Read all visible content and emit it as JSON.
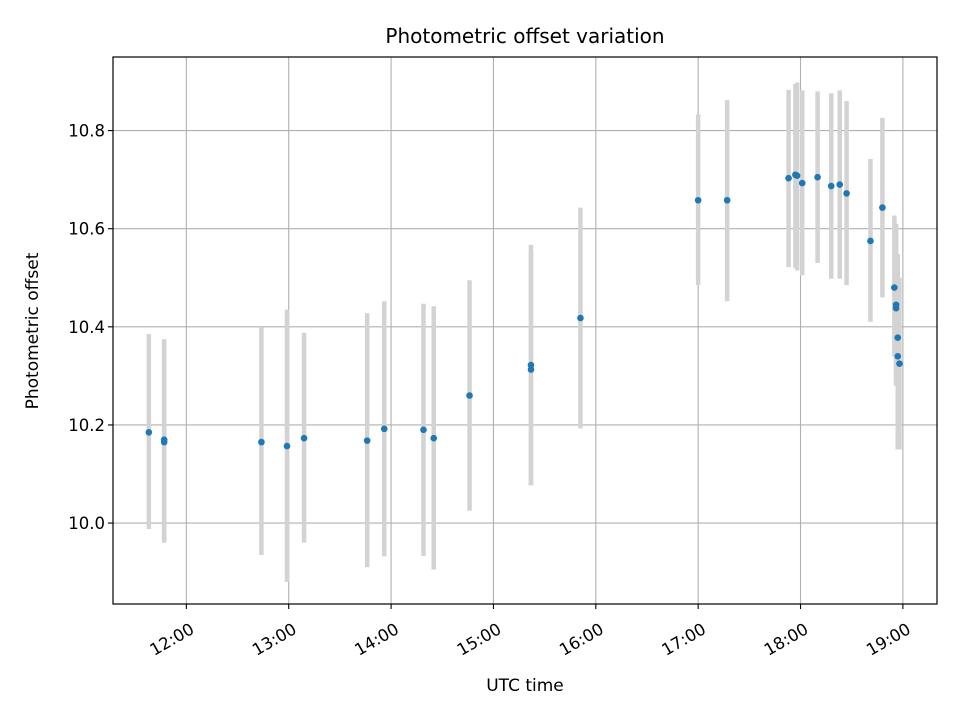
{
  "chart_data": {
    "type": "scatter",
    "title": "Photometric offset variation",
    "xlabel": "UTC time",
    "ylabel": "Photometric offset",
    "x_unit": "UTC time (HH:MM)",
    "xlim": [
      "11:17",
      "19:20"
    ],
    "ylim": [
      9.835,
      10.95
    ],
    "grid": true,
    "x_ticks": [
      "12:00",
      "13:00",
      "14:00",
      "15:00",
      "16:00",
      "17:00",
      "18:00",
      "19:00"
    ],
    "y_ticks": [
      10.0,
      10.2,
      10.4,
      10.6,
      10.8
    ],
    "marker_color": "#1f77b4",
    "errorbar_color": "#d3d3d3",
    "points": [
      {
        "t": "11:38",
        "y": 10.185,
        "lo": 9.988,
        "hi": 10.385
      },
      {
        "t": "11:47",
        "y": 10.17,
        "lo": 9.96,
        "hi": 10.375
      },
      {
        "t": "11:47",
        "y": 10.165,
        "lo": 9.965,
        "hi": 10.37
      },
      {
        "t": "12:44",
        "y": 10.165,
        "lo": 9.935,
        "hi": 10.4
      },
      {
        "t": "12:59",
        "y": 10.157,
        "lo": 9.88,
        "hi": 10.435
      },
      {
        "t": "13:09",
        "y": 10.173,
        "lo": 9.96,
        "hi": 10.388
      },
      {
        "t": "13:46",
        "y": 10.168,
        "lo": 9.91,
        "hi": 10.428
      },
      {
        "t": "13:56",
        "y": 10.192,
        "lo": 9.932,
        "hi": 10.452
      },
      {
        "t": "14:19",
        "y": 10.19,
        "lo": 9.933,
        "hi": 10.447
      },
      {
        "t": "14:25",
        "y": 10.173,
        "lo": 9.905,
        "hi": 10.442
      },
      {
        "t": "14:46",
        "y": 10.26,
        "lo": 10.025,
        "hi": 10.495
      },
      {
        "t": "15:22",
        "y": 10.322,
        "lo": 10.077,
        "hi": 10.567
      },
      {
        "t": "15:22",
        "y": 10.313,
        "lo": 10.077,
        "hi": 10.55
      },
      {
        "t": "15:51",
        "y": 10.418,
        "lo": 10.193,
        "hi": 10.643
      },
      {
        "t": "17:00",
        "y": 10.658,
        "lo": 10.485,
        "hi": 10.833
      },
      {
        "t": "17:17",
        "y": 10.658,
        "lo": 10.452,
        "hi": 10.862
      },
      {
        "t": "17:53",
        "y": 10.703,
        "lo": 10.522,
        "hi": 10.883
      },
      {
        "t": "17:57",
        "y": 10.71,
        "lo": 10.52,
        "hi": 10.895
      },
      {
        "t": "17:58",
        "y": 10.708,
        "lo": 10.515,
        "hi": 10.898
      },
      {
        "t": "18:01",
        "y": 10.693,
        "lo": 10.505,
        "hi": 10.882
      },
      {
        "t": "18:10",
        "y": 10.705,
        "lo": 10.53,
        "hi": 10.88
      },
      {
        "t": "18:18",
        "y": 10.687,
        "lo": 10.498,
        "hi": 10.876
      },
      {
        "t": "18:23",
        "y": 10.69,
        "lo": 10.498,
        "hi": 10.882
      },
      {
        "t": "18:27",
        "y": 10.672,
        "lo": 10.485,
        "hi": 10.86
      },
      {
        "t": "18:41",
        "y": 10.575,
        "lo": 10.41,
        "hi": 10.742
      },
      {
        "t": "18:48",
        "y": 10.643,
        "lo": 10.46,
        "hi": 10.826
      },
      {
        "t": "18:55",
        "y": 10.48,
        "lo": 10.34,
        "hi": 10.627
      },
      {
        "t": "18:56",
        "y": 10.445,
        "lo": 10.28,
        "hi": 10.61
      },
      {
        "t": "18:56",
        "y": 10.438,
        "lo": 10.285,
        "hi": 10.595
      },
      {
        "t": "18:57",
        "y": 10.378,
        "lo": 10.21,
        "hi": 10.548
      },
      {
        "t": "18:57",
        "y": 10.34,
        "lo": 10.15,
        "hi": 10.53
      },
      {
        "t": "18:58",
        "y": 10.325,
        "lo": 10.15,
        "hi": 10.5
      }
    ]
  }
}
